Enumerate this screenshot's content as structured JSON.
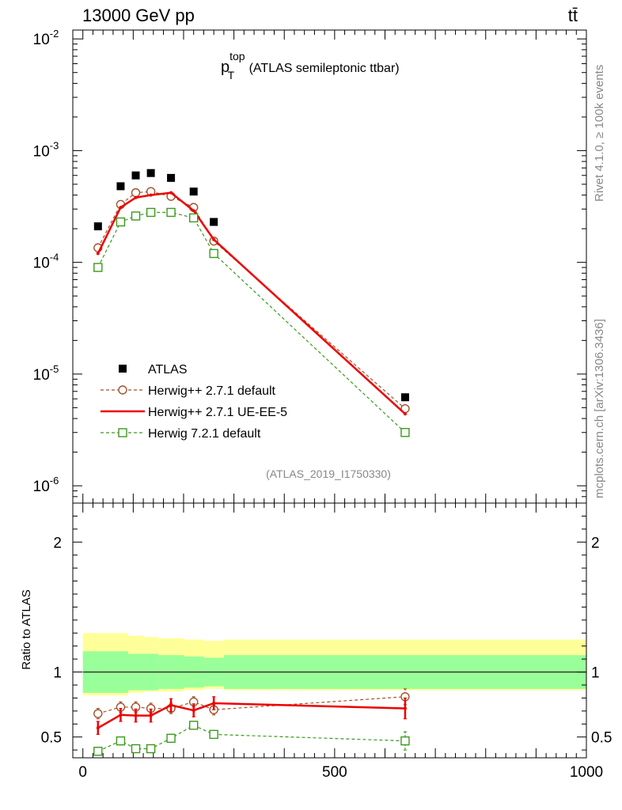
{
  "header": {
    "energy_label": "13000 GeV pp",
    "process_label": "tt̄"
  },
  "side_labels": {
    "rivet": "Rivet 4.1.0, ≥ 100k events",
    "source": "mcplots.cern.ch [arXiv:1306.3436]"
  },
  "chart_data": [
    {
      "type": "line",
      "panel": "main",
      "title_main": "p",
      "title_sup": "top",
      "title_sub": "T",
      "title_rest": " (ATLAS semileptonic ttbar)",
      "analysis_tag": "(ATLAS_2019_I1750330)",
      "yscale": "log",
      "xlim": [
        -20,
        1000
      ],
      "ylim": [
        7e-07,
        0.012
      ],
      "y_ticks": [
        {
          "mantissa": "10",
          "exp": "-6",
          "value": 1e-06
        },
        {
          "mantissa": "10",
          "exp": "-5",
          "value": 1e-05
        },
        {
          "mantissa": "10",
          "exp": "-4",
          "value": 0.0001
        },
        {
          "mantissa": "10",
          "exp": "-3",
          "value": 0.001
        },
        {
          "mantissa": "10",
          "exp": "-2",
          "value": 0.01
        }
      ],
      "x": [
        30,
        75,
        105,
        135,
        175,
        220,
        260,
        640
      ],
      "series": [
        {
          "name": "ATLAS",
          "style": "data",
          "color": "#000000",
          "values": [
            0.00021,
            0.00048,
            0.0006,
            0.00063,
            0.00057,
            0.00043,
            0.00023,
            6.2e-06
          ]
        },
        {
          "name": "Herwig++ 2.7.1 default",
          "style": "dashed-circle",
          "color": "#a0522d",
          "values": [
            0.000135,
            0.00033,
            0.00042,
            0.00043,
            0.00039,
            0.00031,
            0.000155,
            4.9e-06
          ]
        },
        {
          "name": "Herwig++ 2.7.1 UE-EE-5",
          "style": "solid",
          "color": "#ee0000",
          "values": [
            0.00012,
            0.00031,
            0.00038,
            0.0004,
            0.00042,
            0.00029,
            0.00016,
            4.4e-06
          ]
        },
        {
          "name": "Herwig 7.2.1 default",
          "style": "dashed-square",
          "color": "#3a9a1a",
          "values": [
            9e-05,
            0.00023,
            0.00026,
            0.00028,
            0.00028,
            0.00025,
            0.00012,
            3e-06
          ]
        }
      ],
      "legend_position": "lower-left"
    },
    {
      "type": "line",
      "panel": "ratio",
      "ylabel": "Ratio to ATLAS",
      "xlim": [
        -20,
        1000
      ],
      "ylim": [
        0.34,
        2.3
      ],
      "y_ticks": [
        0.5,
        1,
        2
      ],
      "y_tick_labels": [
        "0.5",
        "1",
        "2"
      ],
      "x_ticks": [
        0,
        500,
        1000
      ],
      "x_tick_labels": [
        "0",
        "500",
        "1000"
      ],
      "x": [
        30,
        75,
        105,
        135,
        175,
        220,
        260,
        640
      ],
      "bin_edges": [
        0,
        50,
        90,
        120,
        150,
        200,
        240,
        280,
        1000
      ],
      "band_inner": [
        [
          0.84,
          1.16
        ],
        [
          0.84,
          1.16
        ],
        [
          0.86,
          1.14
        ],
        [
          0.86,
          1.14
        ],
        [
          0.87,
          1.13
        ],
        [
          0.88,
          1.12
        ],
        [
          0.89,
          1.11
        ],
        [
          0.87,
          1.13
        ]
      ],
      "band_outer": [
        [
          0.82,
          1.3
        ],
        [
          0.82,
          1.3
        ],
        [
          0.84,
          1.28
        ],
        [
          0.85,
          1.27
        ],
        [
          0.85,
          1.26
        ],
        [
          0.86,
          1.25
        ],
        [
          0.87,
          1.24
        ],
        [
          0.86,
          1.25
        ]
      ],
      "series": [
        {
          "name": "Herwig++ 2.7.1 default",
          "style": "dashed-circle",
          "color": "#a0522d",
          "values": [
            0.68,
            0.73,
            0.73,
            0.72,
            0.72,
            0.77,
            0.71,
            0.81
          ],
          "errors": [
            0.04,
            0.04,
            0.04,
            0.04,
            0.04,
            0.04,
            0.04,
            0.06
          ]
        },
        {
          "name": "Herwig++ 2.7.1 UE-EE-5",
          "style": "solid",
          "color": "#ee0000",
          "values": [
            0.57,
            0.67,
            0.665,
            0.665,
            0.745,
            0.705,
            0.76,
            0.72
          ],
          "errors": [
            0.05,
            0.05,
            0.05,
            0.05,
            0.05,
            0.05,
            0.05,
            0.08
          ]
        },
        {
          "name": "Herwig 7.2.1 default",
          "style": "dashed-square",
          "color": "#3a9a1a",
          "values": [
            0.39,
            0.47,
            0.41,
            0.41,
            0.49,
            0.59,
            0.52,
            0.47
          ],
          "errors": [
            0.03,
            0.03,
            0.03,
            0.03,
            0.03,
            0.03,
            0.03,
            0.07
          ]
        }
      ]
    }
  ]
}
